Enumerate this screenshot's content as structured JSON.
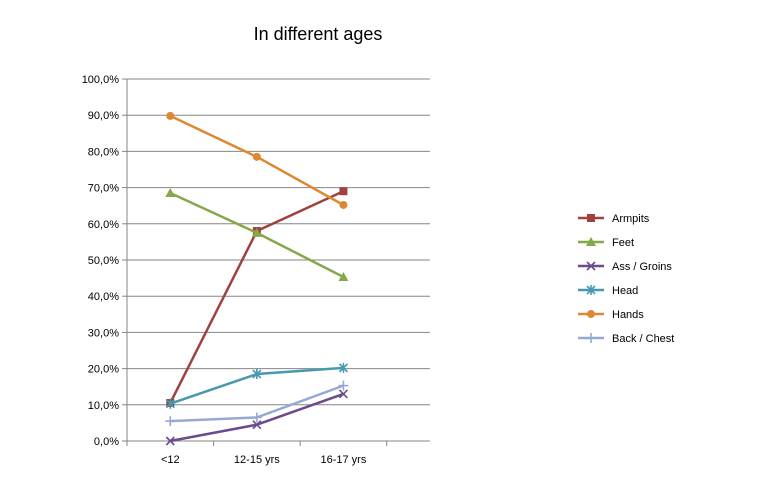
{
  "chart_data": {
    "type": "line",
    "title": "In different ages",
    "categories": [
      "<12",
      "12-15 yrs",
      "16-17 yrs"
    ],
    "y_ticks": [
      "0,0%",
      "10,0%",
      "20,0%",
      "30,0%",
      "40,0%",
      "50,0%",
      "60,0%",
      "70,0%",
      "80,0%",
      "90,0%",
      "100,0%"
    ],
    "ylim": [
      0,
      100
    ],
    "grid": "horizontal",
    "legend": "right",
    "series": [
      {
        "name": "Armpits",
        "values": [
          10.5,
          58.0,
          69.0
        ],
        "color": "#A0413E",
        "marker": "square"
      },
      {
        "name": "Feet",
        "values": [
          68.5,
          57.5,
          45.3
        ],
        "color": "#86A84A",
        "marker": "triangle"
      },
      {
        "name": "Ass / Groins",
        "values": [
          0.0,
          4.5,
          13.0
        ],
        "color": "#6B4A8E",
        "marker": "x"
      },
      {
        "name": "Head",
        "values": [
          10.3,
          18.5,
          20.2
        ],
        "color": "#4699AF",
        "marker": "asterisk"
      },
      {
        "name": "Hands",
        "values": [
          89.8,
          78.5,
          65.2
        ],
        "color": "#DD8833",
        "marker": "circle"
      },
      {
        "name": "Back / Chest",
        "values": [
          5.5,
          6.5,
          15.3
        ],
        "color": "#96A9D3",
        "marker": "plus"
      }
    ]
  }
}
